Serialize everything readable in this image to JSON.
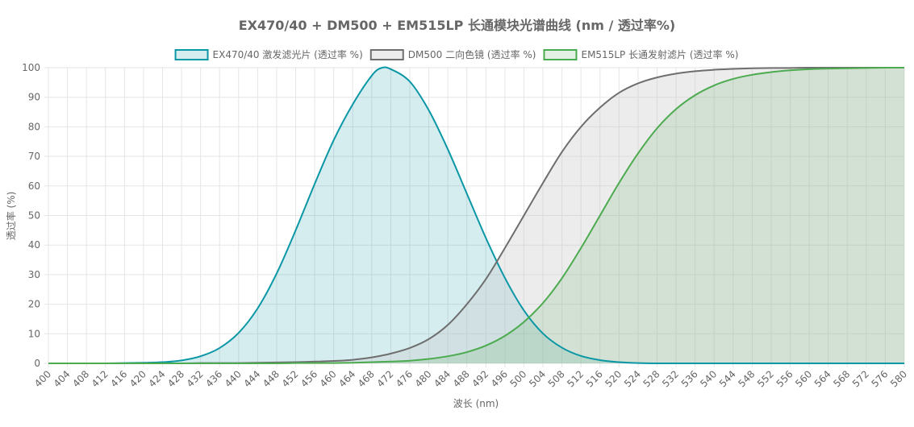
{
  "chart_data": {
    "type": "area",
    "title": "EX470/40 + DM500 + EM515LP 长通模块光谱曲线 (nm / 透过率%)",
    "xlabel": "波长 (nm)",
    "ylabel": "透过率 (%)",
    "xlim": [
      400,
      580
    ],
    "ylim": [
      0,
      100
    ],
    "x_tick_step": 4,
    "y_tick_step": 10,
    "grid": true,
    "legend_position": "top",
    "x": [
      400,
      404,
      408,
      412,
      416,
      420,
      424,
      428,
      432,
      436,
      440,
      444,
      448,
      452,
      456,
      460,
      464,
      468,
      470,
      472,
      476,
      480,
      484,
      488,
      492,
      496,
      500,
      504,
      508,
      512,
      516,
      520,
      524,
      528,
      532,
      536,
      540,
      544,
      548,
      552,
      556,
      560,
      564,
      568,
      572,
      576,
      580
    ],
    "series": [
      {
        "name": "EX470/40 激发滤光片 (透过率 %)",
        "color": "#0a97a5",
        "fill": "rgba(10,151,165,0.17)",
        "values": [
          0.0,
          0.0,
          0.0,
          0.0,
          0.1,
          0.2,
          0.4,
          1.0,
          2.4,
          5.2,
          10.3,
          18.6,
          30.4,
          45.0,
          60.7,
          75.5,
          87.6,
          97.3,
          99.9,
          99.5,
          95.3,
          85.6,
          72.4,
          57.4,
          42.4,
          28.9,
          17.9,
          10.1,
          5.3,
          2.5,
          1.1,
          0.4,
          0.1,
          0.0,
          0.0,
          0.0,
          0.0,
          0.0,
          0.0,
          0.0,
          0.0,
          0.0,
          0.0,
          0.0,
          0.0,
          0.0,
          0.0
        ]
      },
      {
        "name": "DM500 二向色镜 (透过率 %)",
        "color": "#6e6e6e",
        "fill": "rgba(200,200,200,0.35)",
        "values": [
          0.0,
          0.0,
          0.0,
          0.0,
          0.0,
          0.0,
          0.0,
          0.0,
          0.1,
          0.1,
          0.1,
          0.2,
          0.3,
          0.4,
          0.6,
          0.8,
          1.2,
          2.0,
          2.6,
          3.3,
          5.2,
          8.2,
          13.0,
          20.0,
          28.5,
          39.0,
          50.0,
          61.0,
          71.5,
          80.0,
          86.5,
          91.5,
          94.7,
          96.7,
          98.0,
          98.8,
          99.3,
          99.6,
          99.8,
          99.9,
          99.9,
          100.0,
          100.0,
          100.0,
          100.0,
          100.0,
          100.0
        ]
      },
      {
        "name": "EM515LP 长通发射滤片 (透过率 %)",
        "color": "#4caa4f",
        "fill": "rgba(76,170,79,0.16)",
        "values": [
          0.0,
          0.0,
          0.0,
          0.0,
          0.0,
          0.0,
          0.0,
          0.0,
          0.0,
          0.0,
          0.0,
          0.0,
          0.0,
          0.1,
          0.1,
          0.1,
          0.2,
          0.4,
          0.5,
          0.6,
          0.9,
          1.5,
          2.4,
          3.8,
          6.0,
          9.3,
          14.0,
          20.4,
          28.8,
          39.0,
          50.0,
          61.0,
          71.0,
          79.5,
          86.0,
          90.7,
          94.0,
          96.2,
          97.6,
          98.5,
          99.1,
          99.5,
          99.7,
          99.8,
          99.9,
          100.0,
          100.0
        ]
      }
    ]
  }
}
